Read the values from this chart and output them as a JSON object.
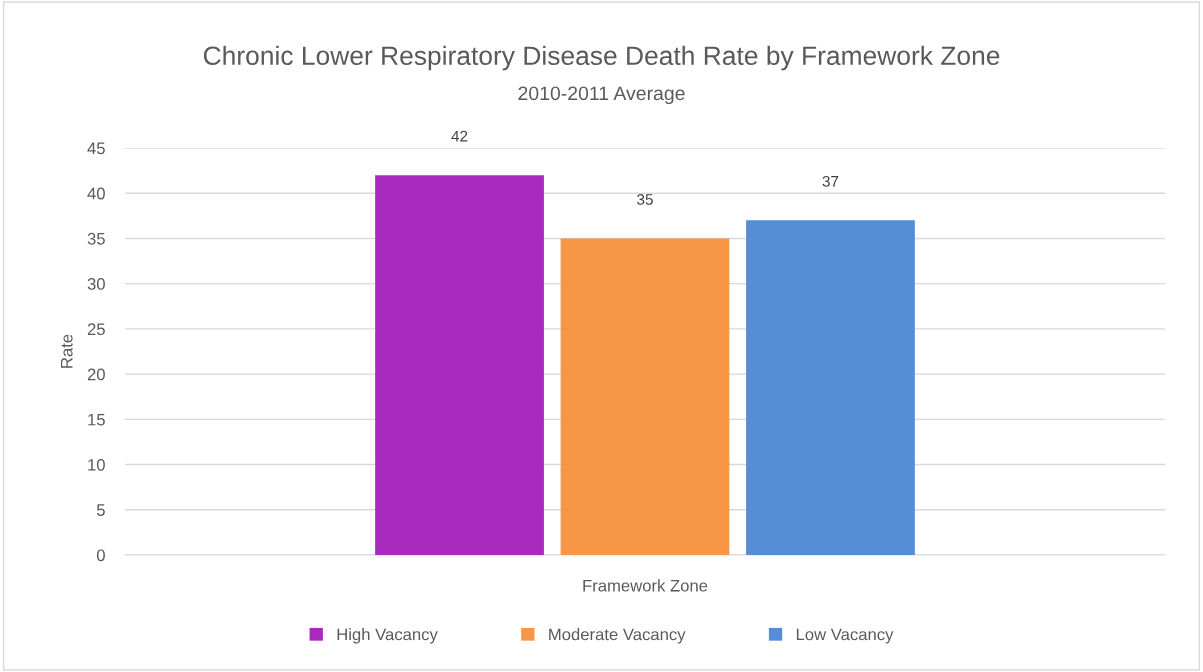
{
  "chart_data": {
    "type": "bar",
    "title": "Chronic Lower Respiratory Disease Death Rate by Framework Zone",
    "subtitle": "2010-2011 Average",
    "xlabel": "Framework Zone",
    "ylabel": "Rate",
    "categories": [
      null
    ],
    "series": [
      {
        "name": "High Vacancy",
        "color": "#a92bbd",
        "values": [
          42
        ]
      },
      {
        "name": "Moderate Vacancy",
        "color": "#f79646",
        "values": [
          35
        ]
      },
      {
        "name": "Low Vacancy",
        "color": "#558ed5",
        "values": [
          37
        ]
      }
    ],
    "ylim": [
      0,
      45
    ],
    "yticks": [
      0,
      5,
      10,
      15,
      20,
      25,
      30,
      35,
      40,
      45
    ],
    "grid": "y",
    "legend": "bottom",
    "data_labels": true
  }
}
